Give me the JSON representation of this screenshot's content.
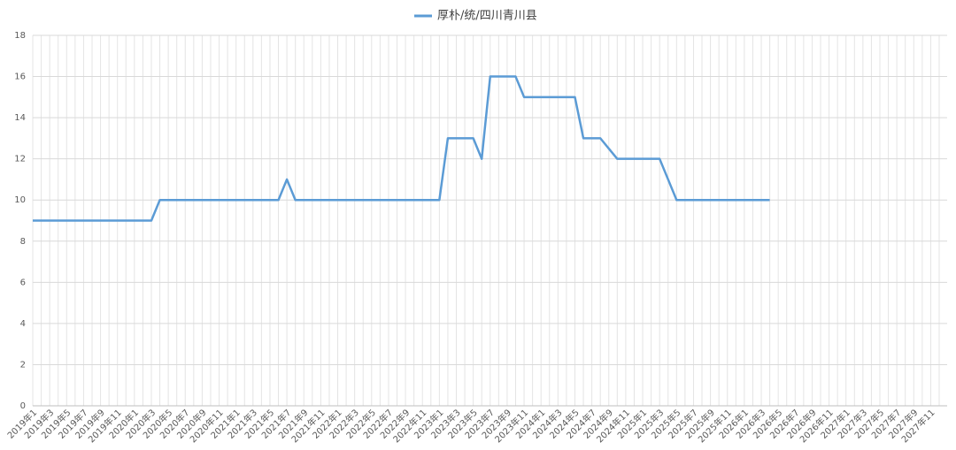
{
  "chart_data": {
    "type": "line",
    "legend_position": "top",
    "grid": true,
    "ylim": [
      0,
      18
    ],
    "yticks": [
      0,
      2,
      4,
      6,
      8,
      10,
      12,
      14,
      16,
      18
    ],
    "categories": [
      "2019年1",
      null,
      "2019年3",
      null,
      "2019年5",
      null,
      "2019年7",
      null,
      "2019年9",
      null,
      "2019年11",
      null,
      "2020年1",
      null,
      "2020年3",
      null,
      "2020年5",
      null,
      "2020年7",
      null,
      "2020年9",
      null,
      "2020年11",
      null,
      "2021年1",
      null,
      "2021年3",
      null,
      "2021年5",
      null,
      "2021年7",
      null,
      "2021年9",
      null,
      "2021年11",
      null,
      "2022年1",
      null,
      "2022年3",
      null,
      "2022年5",
      null,
      "2022年7",
      null,
      "2022年9",
      null,
      "2022年11",
      null,
      "2023年1",
      null,
      "2023年3",
      null,
      "2023年5",
      null,
      "2023年7",
      null,
      "2023年9",
      null,
      "2023年11",
      null,
      "2024年1",
      null,
      "2024年3",
      null,
      "2024年5",
      null,
      "2024年7",
      null,
      "2024年9",
      null,
      "2024年11",
      null,
      "2025年1",
      null,
      "2025年3",
      null,
      "2025年5",
      null,
      "2025年7",
      null,
      "2025年9",
      null,
      "2025年11",
      null,
      "2026年1",
      null,
      "2026年3",
      null,
      "2026年5",
      null,
      "2026年7",
      null,
      "2026年9",
      null,
      "2026年11",
      null,
      "2027年1",
      null,
      "2027年3",
      null,
      "2027年5",
      null,
      "2027年7",
      null,
      "2027年9",
      null,
      "2027年11",
      null
    ],
    "series": [
      {
        "name": "厚朴/统/四川青川县",
        "color": "#5b9bd5",
        "values": [
          9,
          9,
          9,
          9,
          9,
          9,
          9,
          9,
          9,
          9,
          9,
          9,
          9,
          9,
          9,
          10,
          10,
          10,
          10,
          10,
          10,
          10,
          10,
          10,
          10,
          10,
          10,
          10,
          10,
          10,
          11,
          10,
          10,
          10,
          10,
          10,
          10,
          10,
          10,
          10,
          10,
          10,
          10,
          10,
          10,
          10,
          10,
          10,
          10,
          13,
          13,
          13,
          13,
          12,
          16,
          16,
          16,
          16,
          15,
          15,
          15,
          15,
          15,
          15,
          15,
          13,
          13,
          13,
          12.5,
          12,
          12,
          12,
          12,
          12,
          12,
          11,
          10,
          10,
          10,
          10,
          10,
          10,
          10,
          10,
          10,
          10,
          10,
          10,
          null,
          null,
          null,
          null,
          null,
          null,
          null,
          null,
          null,
          null,
          null,
          null,
          null,
          null,
          null,
          null,
          null,
          null,
          null,
          null
        ]
      }
    ]
  }
}
